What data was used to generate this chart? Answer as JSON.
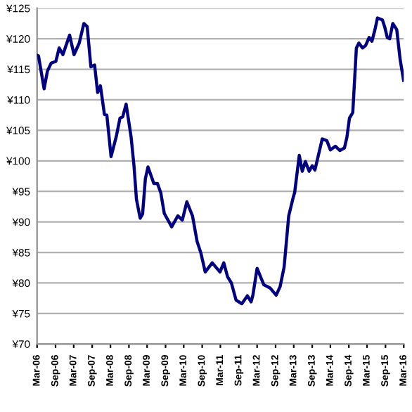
{
  "chart_data": {
    "type": "line",
    "x": [
      "2006-03-01",
      "2006-03-15",
      "2006-05-10",
      "2006-06-12",
      "2006-07-19",
      "2006-09-04",
      "2006-10-07",
      "2006-11-13",
      "2007-01-19",
      "2007-03-04",
      "2007-04-25",
      "2007-06-10",
      "2007-07-13",
      "2007-08-19",
      "2007-09-25",
      "2007-10-25",
      "2007-11-22",
      "2008-01-01",
      "2008-01-25",
      "2008-03-07",
      "2008-04-28",
      "2008-06-04",
      "2008-07-01",
      "2008-08-04",
      "2008-09-22",
      "2008-10-22",
      "2008-11-15",
      "2008-12-22",
      "2009-01-15",
      "2009-02-12",
      "2009-03-10",
      "2009-05-07",
      "2009-06-12",
      "2009-07-15",
      "2009-08-19",
      "2009-11-01",
      "2010-01-01",
      "2010-02-15",
      "2010-04-01",
      "2010-05-27",
      "2010-07-12",
      "2010-08-19",
      "2010-10-01",
      "2010-12-10",
      "2011-02-25",
      "2011-04-04",
      "2011-05-12",
      "2011-06-19",
      "2011-08-04",
      "2011-10-01",
      "2011-11-25",
      "2012-01-01",
      "2012-01-19",
      "2012-03-01",
      "2012-05-07",
      "2012-07-07",
      "2012-09-07",
      "2012-10-16",
      "2012-11-25",
      "2013-01-10",
      "2013-02-25",
      "2013-03-10",
      "2013-04-25",
      "2013-05-25",
      "2013-06-25",
      "2013-08-01",
      "2013-09-01",
      "2013-09-28",
      "2013-12-10",
      "2014-01-25",
      "2014-03-01",
      "2014-04-19",
      "2014-06-04",
      "2014-07-19",
      "2014-08-13",
      "2014-09-07",
      "2014-10-10",
      "2014-11-15",
      "2014-12-10",
      "2015-01-15",
      "2015-02-15",
      "2015-03-22",
      "2015-04-19",
      "2015-05-19",
      "2015-06-13",
      "2015-08-01",
      "2015-08-25",
      "2015-09-19",
      "2015-10-13",
      "2015-11-13",
      "2015-12-22",
      "2016-01-25",
      "2016-02-28"
    ],
    "series": [
      {
        "color": "#000080",
        "values": [
          117.3,
          117.2,
          111.8,
          114.7,
          116.0,
          116.3,
          118.5,
          117.4,
          120.6,
          117.4,
          119.3,
          122.5,
          122.0,
          115.4,
          115.7,
          111.2,
          112.3,
          107.6,
          107.5,
          100.7,
          104.0,
          107.0,
          107.2,
          109.3,
          104.0,
          99.1,
          93.7,
          90.6,
          91.3,
          97.1,
          99.0,
          96.3,
          96.3,
          94.8,
          91.4,
          89.2,
          91.0,
          90.3,
          93.3,
          91.0,
          86.8,
          84.9,
          81.8,
          83.3,
          81.8,
          83.3,
          81.0,
          80.0,
          77.2,
          76.6,
          77.9,
          76.9,
          78.0,
          82.4,
          79.7,
          79.2,
          78.0,
          79.4,
          82.6,
          91.0,
          94.1,
          94.8,
          100.9,
          98.3,
          99.9,
          98.3,
          99.2,
          98.5,
          103.6,
          103.3,
          101.8,
          102.4,
          101.7,
          102.1,
          103.9,
          107.0,
          107.9,
          118.5,
          119.3,
          118.5,
          118.9,
          120.2,
          119.6,
          121.5,
          123.4,
          123.1,
          121.9,
          120.2,
          120.0,
          122.5,
          121.5,
          116.6,
          113.2
        ]
      }
    ],
    "xlim": [
      "2006-03-01",
      "2016-03-01"
    ],
    "xticks": [
      {
        "value": "2006-03-01",
        "label": "Mar-06"
      },
      {
        "value": "2006-09-01",
        "label": "Sep-06"
      },
      {
        "value": "2007-03-01",
        "label": "Mar-07"
      },
      {
        "value": "2007-09-01",
        "label": "Sep-07"
      },
      {
        "value": "2008-03-01",
        "label": "Mar-08"
      },
      {
        "value": "2008-09-01",
        "label": "Sep-08"
      },
      {
        "value": "2009-03-01",
        "label": "Mar-09"
      },
      {
        "value": "2009-09-01",
        "label": "Sep-09"
      },
      {
        "value": "2010-03-01",
        "label": "Mar-10"
      },
      {
        "value": "2010-09-01",
        "label": "Sep-10"
      },
      {
        "value": "2011-03-01",
        "label": "Mar-11"
      },
      {
        "value": "2011-09-01",
        "label": "Sep-11"
      },
      {
        "value": "2012-03-01",
        "label": "Mar-12"
      },
      {
        "value": "2012-09-01",
        "label": "Sep-12"
      },
      {
        "value": "2013-03-01",
        "label": "Mar-13"
      },
      {
        "value": "2013-09-01",
        "label": "Sep-13"
      },
      {
        "value": "2014-03-01",
        "label": "Mar-14"
      },
      {
        "value": "2014-09-01",
        "label": "Sep-14"
      },
      {
        "value": "2015-03-01",
        "label": "Mar-15"
      },
      {
        "value": "2015-09-01",
        "label": "Sep-15"
      },
      {
        "value": "2016-03-01",
        "label": "Mar-16"
      }
    ],
    "ylim": [
      70,
      125
    ],
    "yticks": [
      {
        "value": 70,
        "label": "¥70"
      },
      {
        "value": 75,
        "label": "¥75"
      },
      {
        "value": 80,
        "label": "¥80"
      },
      {
        "value": 85,
        "label": "¥85"
      },
      {
        "value": 90,
        "label": "¥90"
      },
      {
        "value": 95,
        "label": "¥95"
      },
      {
        "value": 100,
        "label": "¥100"
      },
      {
        "value": 105,
        "label": "¥105"
      },
      {
        "value": 110,
        "label": "¥110"
      },
      {
        "value": 115,
        "label": "¥115"
      },
      {
        "value": 120,
        "label": "¥120"
      },
      {
        "value": 125,
        "label": "¥125"
      }
    ],
    "grid": "y",
    "legend": false,
    "marker": "none",
    "line_style": "solid"
  }
}
